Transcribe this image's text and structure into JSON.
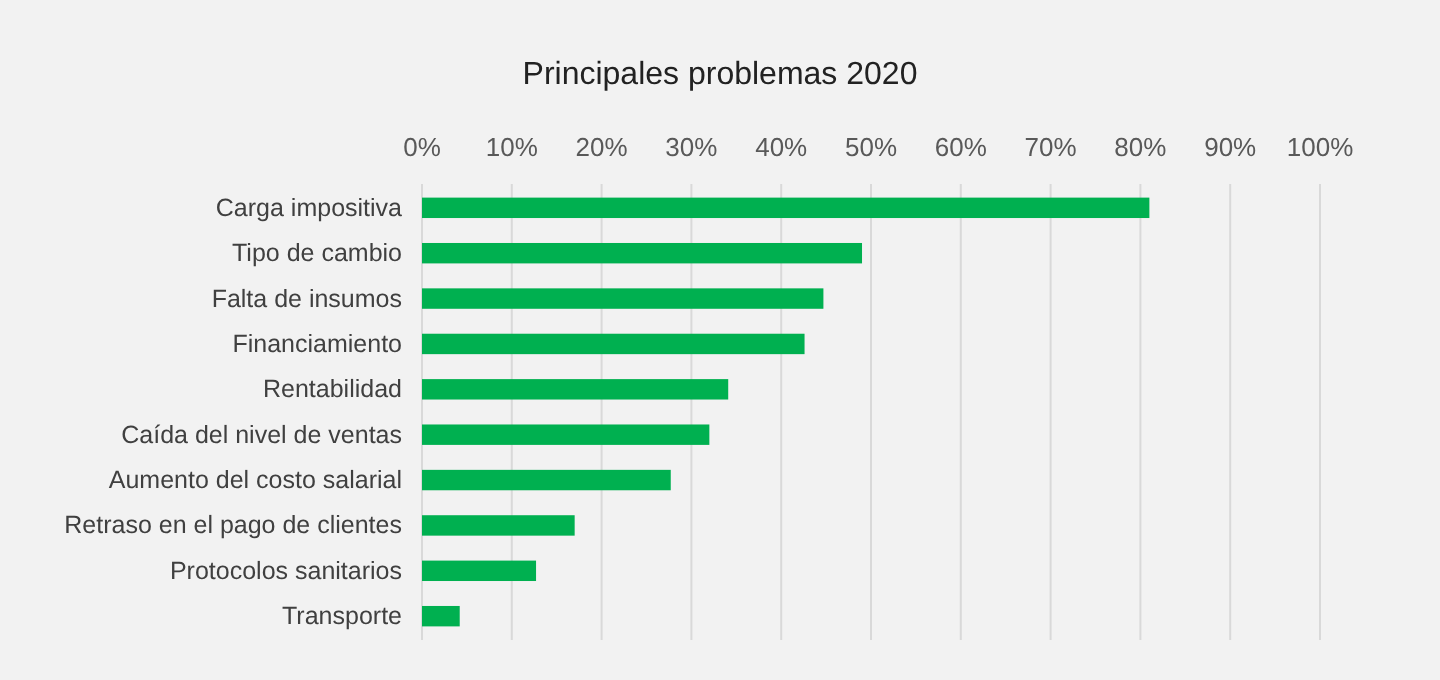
{
  "chart_data": {
    "type": "bar",
    "orientation": "horizontal",
    "title": "Principales problemas 2020",
    "categories": [
      "Carga impositiva",
      "Tipo de cambio",
      "Falta de insumos",
      "Financiamiento",
      "Rentabilidad",
      "Caída del nivel de ventas",
      "Aumento del costo salarial",
      "Retraso en el pago de clientes",
      "Protocolos sanitarios",
      "Transporte"
    ],
    "values": [
      81,
      49,
      44.7,
      42.6,
      34.1,
      32,
      27.7,
      17,
      12.7,
      4.2
    ],
    "color": "#00b050",
    "xlim": [
      0,
      100
    ],
    "xticks": [
      {
        "value": 0,
        "label": "0%"
      },
      {
        "value": 10,
        "label": "10%"
      },
      {
        "value": 20,
        "label": "20%"
      },
      {
        "value": 30,
        "label": "30%"
      },
      {
        "value": 40,
        "label": "40%"
      },
      {
        "value": 50,
        "label": "50%"
      },
      {
        "value": 60,
        "label": "60%"
      },
      {
        "value": 70,
        "label": "70%"
      },
      {
        "value": 80,
        "label": "80%"
      },
      {
        "value": 90,
        "label": "90%"
      },
      {
        "value": 100,
        "label": "100%"
      }
    ],
    "grid": "x"
  }
}
